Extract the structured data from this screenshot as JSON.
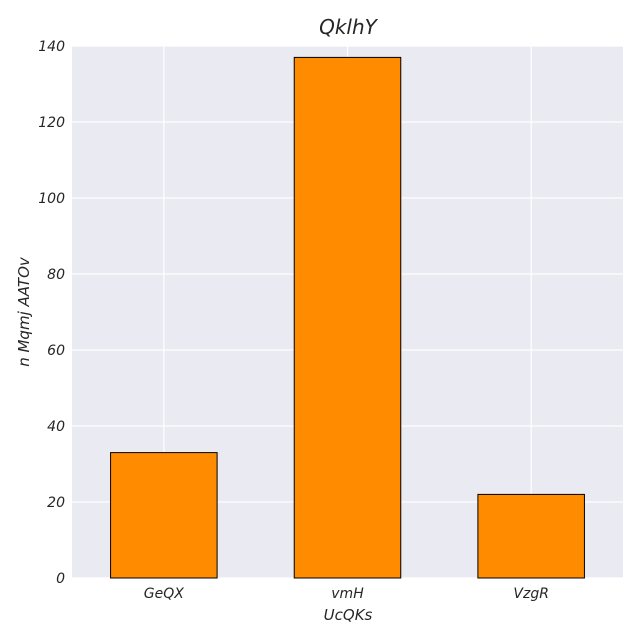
{
  "chart_data": {
    "type": "bar",
    "title": "QklhY",
    "xlabel": "UcQKs",
    "ylabel": "n Mqmj AATOv",
    "categories": [
      "GeQX",
      "vmH",
      "VzgR"
    ],
    "values": [
      33,
      137,
      22
    ],
    "ylim": [
      0,
      140
    ],
    "yticks": [
      "0",
      "20",
      "40",
      "60",
      "80",
      "100",
      "120",
      "140"
    ],
    "grid": true,
    "legend": "none",
    "colors": {
      "bar": "#ff8c00",
      "bar_edge": "#000000",
      "plot_background": "#eaeaf2",
      "grid": "#ffffff",
      "text": "#262626"
    }
  }
}
